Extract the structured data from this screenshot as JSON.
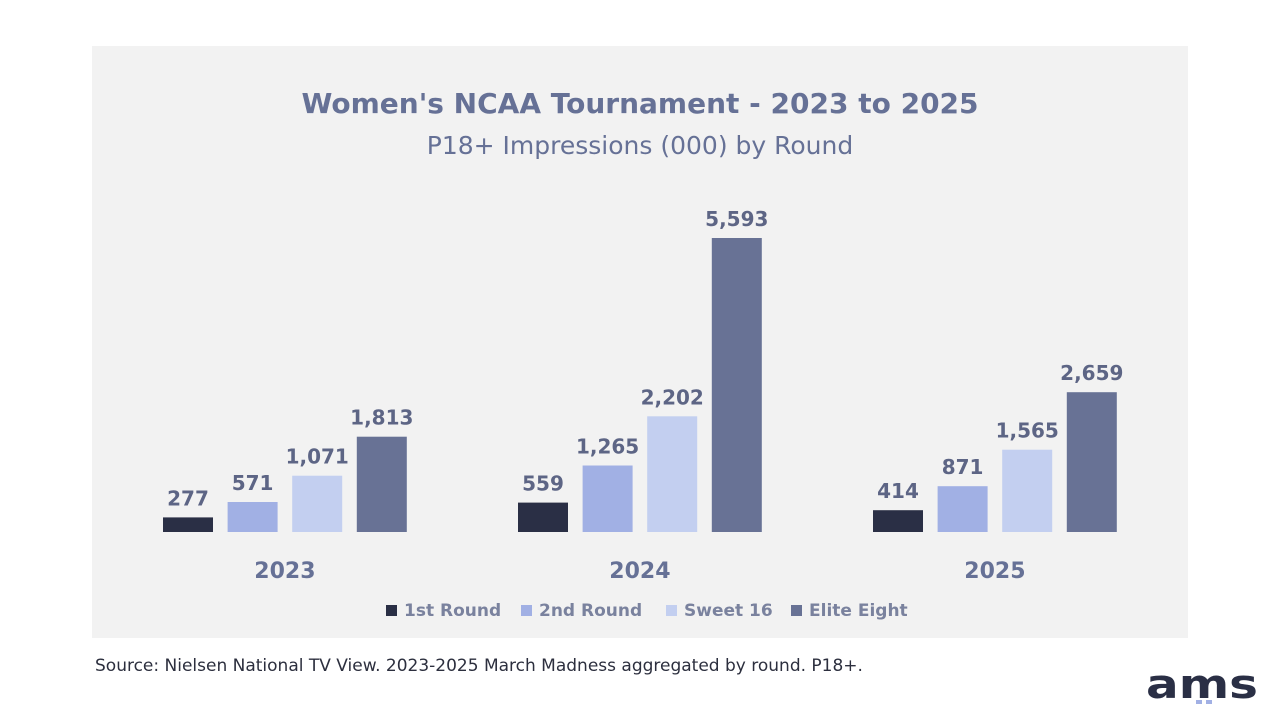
{
  "chart_data": {
    "type": "bar",
    "title": "Women's NCAA Tournament - 2023 to 2025",
    "subtitle": "P18+ Impressions (000) by Round",
    "categories": [
      "2023",
      "2024",
      "2025"
    ],
    "series": [
      {
        "name": "1st Round",
        "color": "#2a2f45",
        "values": [
          277,
          559,
          414
        ],
        "labels": [
          "277",
          "559",
          "414"
        ]
      },
      {
        "name": "2nd Round",
        "color": "#a1b0e4",
        "values": [
          571,
          1265,
          871
        ],
        "labels": [
          "571",
          "1,265",
          "871"
        ]
      },
      {
        "name": "Sweet 16",
        "color": "#c3cff0",
        "values": [
          1071,
          2202,
          1565
        ],
        "labels": [
          "1,071",
          "2,202",
          "1,565"
        ]
      },
      {
        "name": "Elite Eight",
        "color": "#687295",
        "values": [
          1813,
          5593,
          2659
        ],
        "labels": [
          "1,813",
          "5,593",
          "2,659"
        ]
      }
    ],
    "ylim": [
      0,
      5593
    ],
    "grid": false,
    "legend_position": "bottom"
  },
  "footer": {
    "source": "Source: Nielsen National TV View. 2023-2025 March Madness aggregated by round. P18+."
  },
  "logo": {
    "text": "ams"
  }
}
